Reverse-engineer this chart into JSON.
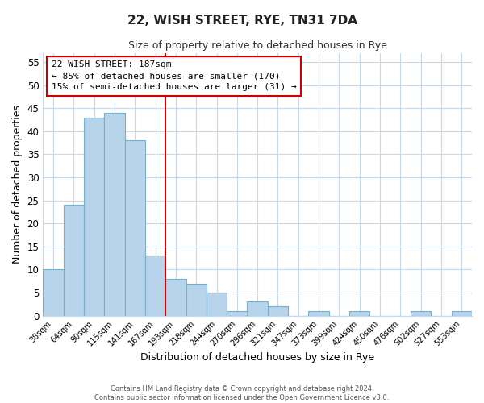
{
  "title": "22, WISH STREET, RYE, TN31 7DA",
  "subtitle": "Size of property relative to detached houses in Rye",
  "xlabel": "Distribution of detached houses by size in Rye",
  "ylabel": "Number of detached properties",
  "bar_labels": [
    "38sqm",
    "64sqm",
    "90sqm",
    "115sqm",
    "141sqm",
    "167sqm",
    "193sqm",
    "218sqm",
    "244sqm",
    "270sqm",
    "296sqm",
    "321sqm",
    "347sqm",
    "373sqm",
    "399sqm",
    "424sqm",
    "450sqm",
    "476sqm",
    "502sqm",
    "527sqm",
    "553sqm"
  ],
  "bar_values": [
    10,
    24,
    43,
    44,
    38,
    13,
    8,
    7,
    5,
    1,
    3,
    2,
    0,
    1,
    0,
    1,
    0,
    0,
    1,
    0,
    1
  ],
  "bar_color": "#b8d4ea",
  "bar_edge_color": "#7aaec8",
  "ylim": [
    0,
    57
  ],
  "yticks": [
    0,
    5,
    10,
    15,
    20,
    25,
    30,
    35,
    40,
    45,
    50,
    55
  ],
  "vline_color": "#cc0000",
  "annotation_title": "22 WISH STREET: 187sqm",
  "annotation_line1": "← 85% of detached houses are smaller (170)",
  "annotation_line2": "15% of semi-detached houses are larger (31) →",
  "annotation_box_color": "#ffffff",
  "annotation_box_edge": "#cc0000",
  "footer_line1": "Contains HM Land Registry data © Crown copyright and database right 2024.",
  "footer_line2": "Contains public sector information licensed under the Open Government Licence v3.0.",
  "background_color": "#ffffff",
  "grid_color": "#c8d8e8"
}
